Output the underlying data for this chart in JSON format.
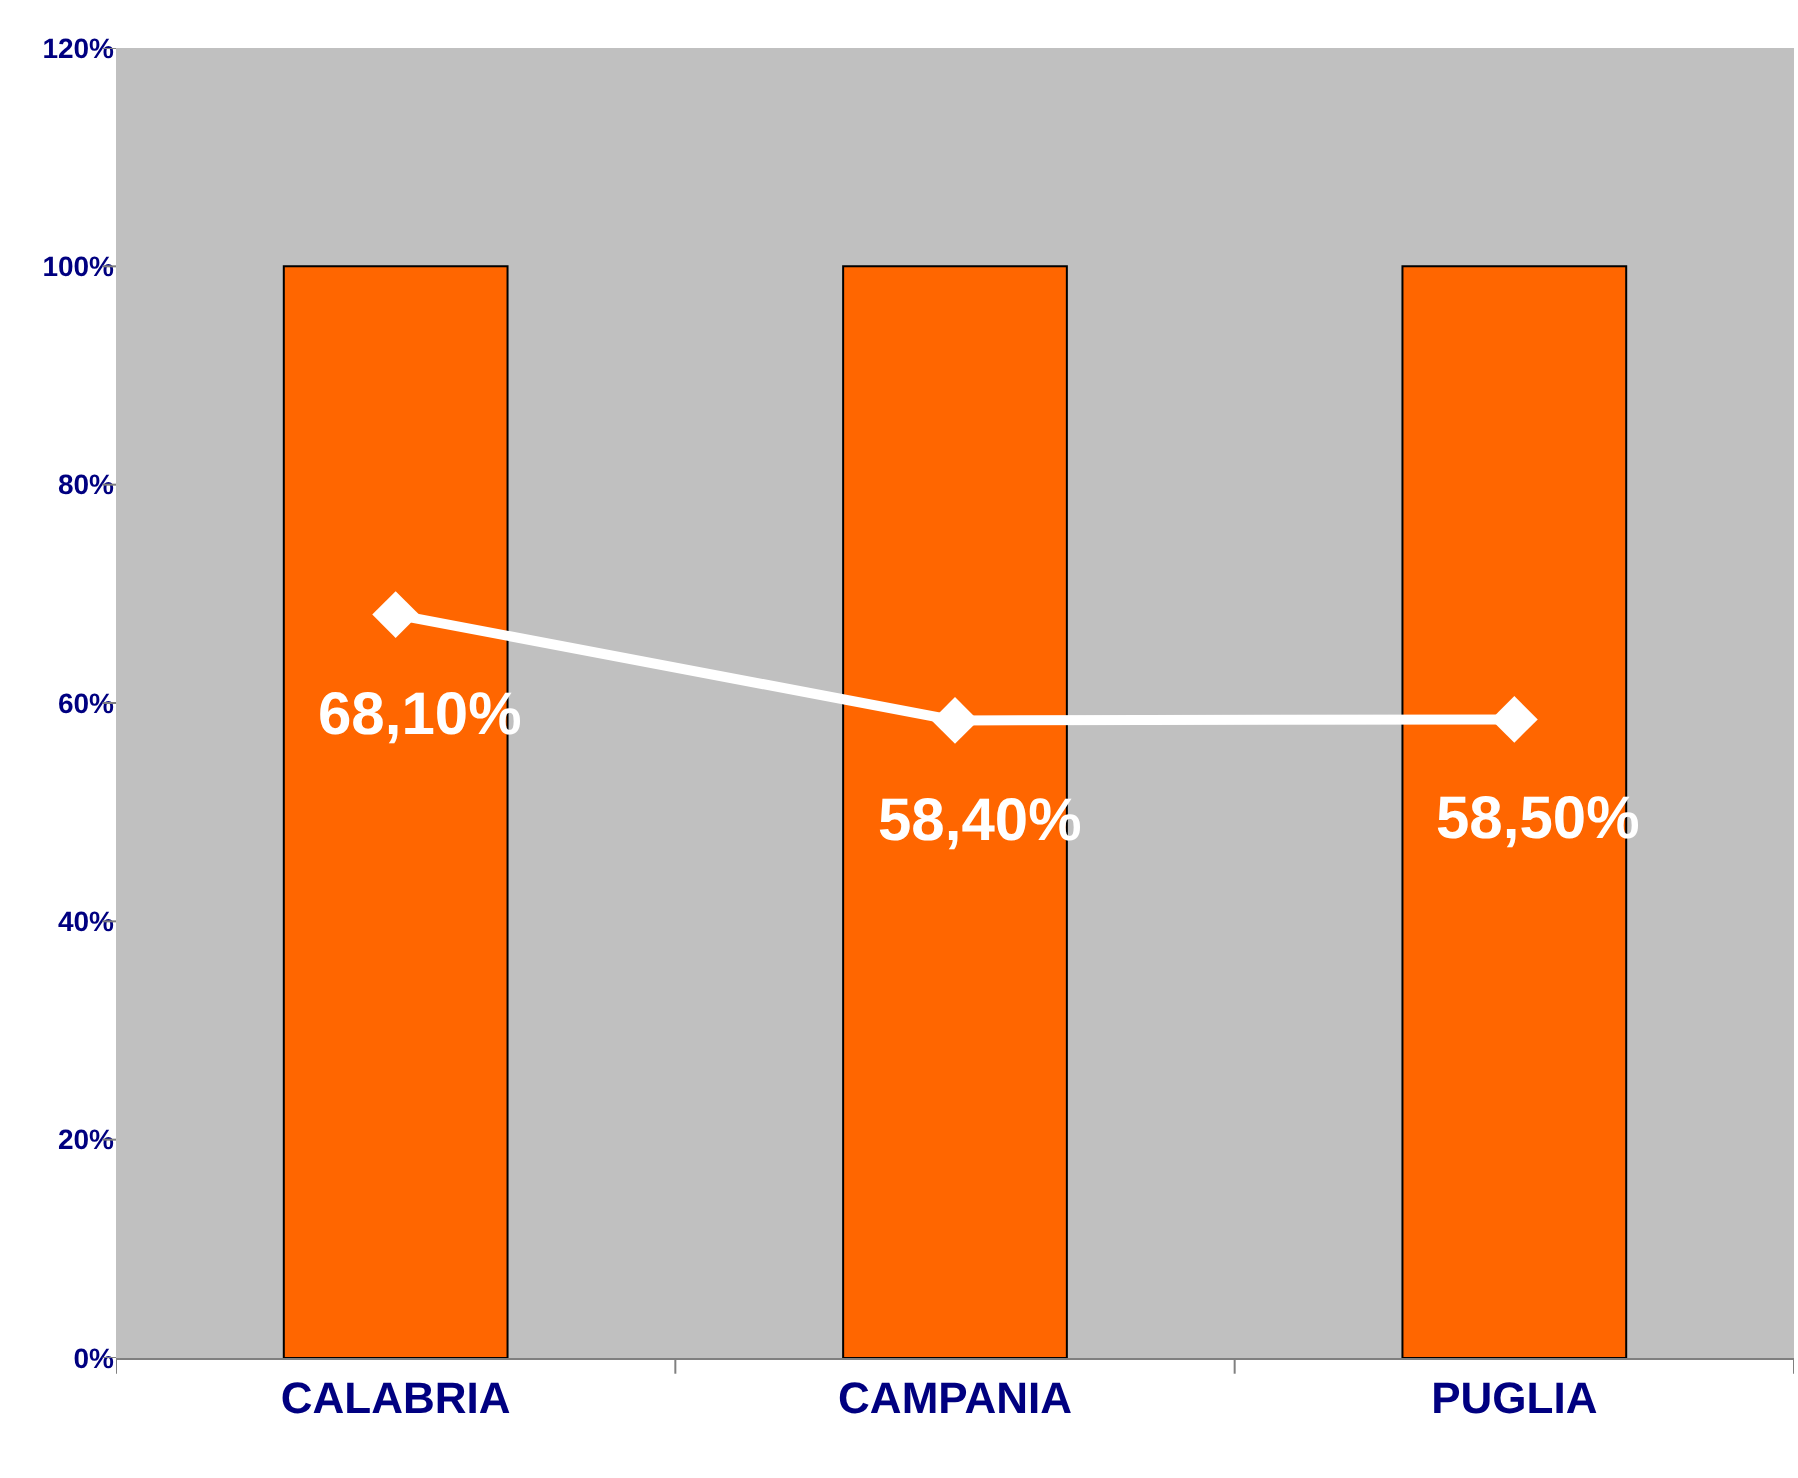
{
  "chart_data": {
    "type": "bar",
    "categories": [
      "CALABRIA",
      "CAMPANIA",
      "PUGLIA"
    ],
    "series": [
      {
        "color": "#ff6600",
        "values": [
          100,
          100,
          100
        ]
      },
      {
        "type": "line",
        "color": "#ffffff",
        "values": [
          68.1,
          58.4,
          58.5
        ],
        "value_labels": [
          "68,10%",
          "58,40%",
          "58,50%"
        ],
        "marker": "diamond",
        "line_style": "solid"
      }
    ],
    "ylim": [
      0,
      120
    ],
    "yticks": [
      {
        "value": 0,
        "label": "0%"
      },
      {
        "value": 20,
        "label": "20%"
      },
      {
        "value": 40,
        "label": "40%"
      },
      {
        "value": 60,
        "label": "60%"
      },
      {
        "value": 80,
        "label": "80%"
      },
      {
        "value": 100,
        "label": "100%"
      },
      {
        "value": 120,
        "label": "120%"
      }
    ],
    "grid": false
  }
}
